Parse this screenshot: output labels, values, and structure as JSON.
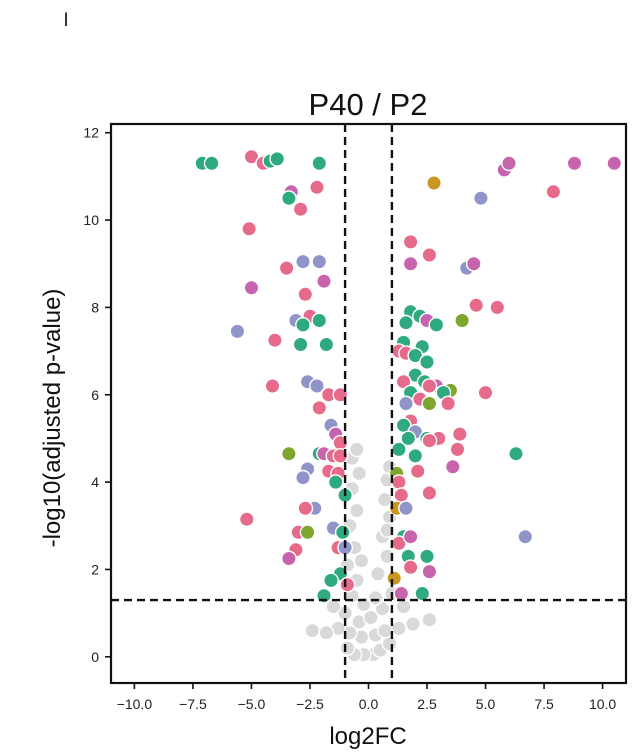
{
  "corner_label": "l",
  "chart_data": {
    "type": "scatter",
    "title": "P40 / P2",
    "xlabel": "log2FC",
    "ylabel": "-log10(adjusted p-value)",
    "xlim": [
      -11,
      11
    ],
    "ylim": [
      -0.6,
      12.2
    ],
    "xticks": [
      "−10.0",
      "−7.5",
      "−5.0",
      "−2.5",
      "0.0",
      "2.5",
      "5.0",
      "7.5",
      "10.0"
    ],
    "xtick_values": [
      -10,
      -7.5,
      -5,
      -2.5,
      0,
      2.5,
      5,
      7.5,
      10
    ],
    "yticks": [
      "0",
      "2",
      "4",
      "6",
      "8",
      "10",
      "12"
    ],
    "ytick_values": [
      0,
      2,
      4,
      6,
      8,
      10,
      12
    ],
    "thresholds": {
      "log2fc": [
        -1,
        1
      ],
      "neg_log10_p": 1.3
    },
    "grid": false,
    "colors": {
      "nonsig": "#d9d9d9",
      "pink": "#e66a8a",
      "green": "#2eaa7e",
      "purple": "#8f94c9",
      "magenta": "#c664ae",
      "olive": "#7ea52e",
      "gold": "#c9961f"
    },
    "points": [
      {
        "x": -7.1,
        "y": 11.3,
        "c": "green"
      },
      {
        "x": -6.7,
        "y": 11.3,
        "c": "green"
      },
      {
        "x": -5.0,
        "y": 11.45,
        "c": "pink"
      },
      {
        "x": -4.5,
        "y": 11.3,
        "c": "pink"
      },
      {
        "x": -4.2,
        "y": 11.35,
        "c": "green"
      },
      {
        "x": -3.9,
        "y": 11.4,
        "c": "green"
      },
      {
        "x": -2.1,
        "y": 11.3,
        "c": "green"
      },
      {
        "x": -3.3,
        "y": 10.65,
        "c": "magenta"
      },
      {
        "x": -3.4,
        "y": 10.5,
        "c": "green"
      },
      {
        "x": -2.2,
        "y": 10.75,
        "c": "pink"
      },
      {
        "x": -2.9,
        "y": 10.25,
        "c": "pink"
      },
      {
        "x": -5.1,
        "y": 9.8,
        "c": "pink"
      },
      {
        "x": -3.5,
        "y": 8.9,
        "c": "pink"
      },
      {
        "x": -2.8,
        "y": 9.05,
        "c": "purple"
      },
      {
        "x": -2.1,
        "y": 9.05,
        "c": "purple"
      },
      {
        "x": -1.9,
        "y": 8.6,
        "c": "magenta"
      },
      {
        "x": -2.7,
        "y": 8.3,
        "c": "pink"
      },
      {
        "x": -5.0,
        "y": 8.45,
        "c": "magenta"
      },
      {
        "x": -2.5,
        "y": 7.8,
        "c": "pink"
      },
      {
        "x": -2.1,
        "y": 7.7,
        "c": "green"
      },
      {
        "x": -3.1,
        "y": 7.7,
        "c": "purple"
      },
      {
        "x": -2.8,
        "y": 7.6,
        "c": "green"
      },
      {
        "x": -5.6,
        "y": 7.45,
        "c": "purple"
      },
      {
        "x": -4.0,
        "y": 7.25,
        "c": "pink"
      },
      {
        "x": -2.9,
        "y": 7.15,
        "c": "green"
      },
      {
        "x": -1.8,
        "y": 7.15,
        "c": "green"
      },
      {
        "x": -4.1,
        "y": 6.2,
        "c": "pink"
      },
      {
        "x": -2.6,
        "y": 6.3,
        "c": "purple"
      },
      {
        "x": -2.2,
        "y": 6.2,
        "c": "purple"
      },
      {
        "x": -1.7,
        "y": 6.0,
        "c": "pink"
      },
      {
        "x": -1.2,
        "y": 6.0,
        "c": "pink"
      },
      {
        "x": -2.1,
        "y": 5.7,
        "c": "pink"
      },
      {
        "x": -1.6,
        "y": 5.3,
        "c": "purple"
      },
      {
        "x": -1.4,
        "y": 5.1,
        "c": "magenta"
      },
      {
        "x": -1.2,
        "y": 4.9,
        "c": "pink"
      },
      {
        "x": -3.4,
        "y": 4.65,
        "c": "olive"
      },
      {
        "x": -2.1,
        "y": 4.65,
        "c": "green"
      },
      {
        "x": -1.9,
        "y": 4.65,
        "c": "magenta"
      },
      {
        "x": -1.5,
        "y": 4.6,
        "c": "pink"
      },
      {
        "x": -1.2,
        "y": 4.6,
        "c": "pink"
      },
      {
        "x": -2.6,
        "y": 4.3,
        "c": "purple"
      },
      {
        "x": -1.7,
        "y": 4.25,
        "c": "pink"
      },
      {
        "x": -1.3,
        "y": 4.2,
        "c": "pink"
      },
      {
        "x": -2.8,
        "y": 4.1,
        "c": "purple"
      },
      {
        "x": -1.4,
        "y": 4.0,
        "c": "green"
      },
      {
        "x": -1.0,
        "y": 3.7,
        "c": "green"
      },
      {
        "x": -2.3,
        "y": 3.4,
        "c": "purple"
      },
      {
        "x": -2.7,
        "y": 3.4,
        "c": "pink"
      },
      {
        "x": -5.2,
        "y": 3.15,
        "c": "pink"
      },
      {
        "x": -1.5,
        "y": 2.95,
        "c": "purple"
      },
      {
        "x": -1.1,
        "y": 2.85,
        "c": "green"
      },
      {
        "x": -3.0,
        "y": 2.85,
        "c": "pink"
      },
      {
        "x": -2.6,
        "y": 2.85,
        "c": "olive"
      },
      {
        "x": -1.3,
        "y": 2.5,
        "c": "pink"
      },
      {
        "x": -1.0,
        "y": 2.5,
        "c": "purple"
      },
      {
        "x": -3.1,
        "y": 2.45,
        "c": "pink"
      },
      {
        "x": -3.4,
        "y": 2.25,
        "c": "magenta"
      },
      {
        "x": -1.2,
        "y": 1.9,
        "c": "green"
      },
      {
        "x": -1.6,
        "y": 1.75,
        "c": "green"
      },
      {
        "x": -0.9,
        "y": 1.65,
        "c": "pink"
      },
      {
        "x": -1.9,
        "y": 1.4,
        "c": "green"
      },
      {
        "x": 2.8,
        "y": 10.85,
        "c": "gold"
      },
      {
        "x": 4.8,
        "y": 10.5,
        "c": "purple"
      },
      {
        "x": 5.8,
        "y": 11.15,
        "c": "magenta"
      },
      {
        "x": 6.0,
        "y": 11.3,
        "c": "magenta"
      },
      {
        "x": 7.9,
        "y": 10.65,
        "c": "pink"
      },
      {
        "x": 8.8,
        "y": 11.3,
        "c": "magenta"
      },
      {
        "x": 10.5,
        "y": 11.3,
        "c": "magenta"
      },
      {
        "x": 1.8,
        "y": 9.5,
        "c": "pink"
      },
      {
        "x": 2.6,
        "y": 9.2,
        "c": "pink"
      },
      {
        "x": 1.8,
        "y": 9.0,
        "c": "magenta"
      },
      {
        "x": 4.2,
        "y": 8.9,
        "c": "purple"
      },
      {
        "x": 4.5,
        "y": 9.0,
        "c": "magenta"
      },
      {
        "x": 1.8,
        "y": 7.9,
        "c": "green"
      },
      {
        "x": 2.2,
        "y": 7.8,
        "c": "green"
      },
      {
        "x": 2.5,
        "y": 7.7,
        "c": "magenta"
      },
      {
        "x": 1.6,
        "y": 7.65,
        "c": "green"
      },
      {
        "x": 2.9,
        "y": 7.6,
        "c": "green"
      },
      {
        "x": 4.6,
        "y": 8.05,
        "c": "pink"
      },
      {
        "x": 5.5,
        "y": 8.0,
        "c": "pink"
      },
      {
        "x": 4.0,
        "y": 7.7,
        "c": "olive"
      },
      {
        "x": 1.5,
        "y": 7.2,
        "c": "green"
      },
      {
        "x": 2.3,
        "y": 7.1,
        "c": "green"
      },
      {
        "x": 1.3,
        "y": 7.0,
        "c": "pink"
      },
      {
        "x": 1.6,
        "y": 6.95,
        "c": "pink"
      },
      {
        "x": 2.0,
        "y": 6.9,
        "c": "green"
      },
      {
        "x": 2.5,
        "y": 6.75,
        "c": "green"
      },
      {
        "x": 2.0,
        "y": 6.45,
        "c": "green"
      },
      {
        "x": 1.5,
        "y": 6.3,
        "c": "pink"
      },
      {
        "x": 2.4,
        "y": 6.3,
        "c": "green"
      },
      {
        "x": 2.9,
        "y": 6.2,
        "c": "magenta"
      },
      {
        "x": 2.6,
        "y": 6.2,
        "c": "pink"
      },
      {
        "x": 3.5,
        "y": 6.1,
        "c": "olive"
      },
      {
        "x": 1.8,
        "y": 6.05,
        "c": "green"
      },
      {
        "x": 3.2,
        "y": 6.05,
        "c": "green"
      },
      {
        "x": 5.0,
        "y": 6.05,
        "c": "pink"
      },
      {
        "x": 1.6,
        "y": 5.8,
        "c": "purple"
      },
      {
        "x": 2.2,
        "y": 5.9,
        "c": "pink"
      },
      {
        "x": 2.6,
        "y": 5.8,
        "c": "olive"
      },
      {
        "x": 3.4,
        "y": 5.8,
        "c": "pink"
      },
      {
        "x": 1.8,
        "y": 5.4,
        "c": "pink"
      },
      {
        "x": 1.5,
        "y": 5.3,
        "c": "green"
      },
      {
        "x": 2.0,
        "y": 5.15,
        "c": "purple"
      },
      {
        "x": 1.7,
        "y": 5.0,
        "c": "green"
      },
      {
        "x": 2.5,
        "y": 5.0,
        "c": "green"
      },
      {
        "x": 3.0,
        "y": 5.0,
        "c": "pink"
      },
      {
        "x": 2.6,
        "y": 4.95,
        "c": "pink"
      },
      {
        "x": 3.9,
        "y": 5.1,
        "c": "pink"
      },
      {
        "x": 1.3,
        "y": 4.75,
        "c": "green"
      },
      {
        "x": 2.0,
        "y": 4.6,
        "c": "green"
      },
      {
        "x": 3.8,
        "y": 4.75,
        "c": "pink"
      },
      {
        "x": 3.6,
        "y": 4.35,
        "c": "magenta"
      },
      {
        "x": 6.3,
        "y": 4.65,
        "c": "green"
      },
      {
        "x": 1.2,
        "y": 4.2,
        "c": "olive"
      },
      {
        "x": 2.1,
        "y": 4.25,
        "c": "pink"
      },
      {
        "x": 1.3,
        "y": 4.0,
        "c": "pink"
      },
      {
        "x": 1.4,
        "y": 3.7,
        "c": "pink"
      },
      {
        "x": 2.6,
        "y": 3.75,
        "c": "pink"
      },
      {
        "x": 1.2,
        "y": 3.4,
        "c": "gold"
      },
      {
        "x": 1.6,
        "y": 3.4,
        "c": "purple"
      },
      {
        "x": 1.5,
        "y": 2.75,
        "c": "green"
      },
      {
        "x": 1.3,
        "y": 2.6,
        "c": "pink"
      },
      {
        "x": 1.8,
        "y": 2.75,
        "c": "magenta"
      },
      {
        "x": 6.7,
        "y": 2.75,
        "c": "purple"
      },
      {
        "x": 1.7,
        "y": 2.3,
        "c": "green"
      },
      {
        "x": 2.5,
        "y": 2.3,
        "c": "green"
      },
      {
        "x": 1.8,
        "y": 2.05,
        "c": "pink"
      },
      {
        "x": 2.6,
        "y": 1.95,
        "c": "magenta"
      },
      {
        "x": 1.1,
        "y": 1.8,
        "c": "gold"
      },
      {
        "x": 1.4,
        "y": 1.45,
        "c": "magenta"
      },
      {
        "x": 2.3,
        "y": 1.45,
        "c": "green"
      },
      {
        "x": 0.2,
        "y": 0.05,
        "c": "nonsig"
      },
      {
        "x": -0.2,
        "y": 0.05,
        "c": "nonsig"
      },
      {
        "x": -0.6,
        "y": 0.05,
        "c": "nonsig"
      },
      {
        "x": 0.5,
        "y": 0.15,
        "c": "nonsig"
      },
      {
        "x": -0.9,
        "y": 0.2,
        "c": "nonsig"
      },
      {
        "x": 0.9,
        "y": 0.3,
        "c": "nonsig"
      },
      {
        "x": -0.3,
        "y": 0.45,
        "c": "nonsig"
      },
      {
        "x": 0.3,
        "y": 0.5,
        "c": "nonsig"
      },
      {
        "x": -0.8,
        "y": 0.55,
        "c": "nonsig"
      },
      {
        "x": 0.7,
        "y": 0.6,
        "c": "nonsig"
      },
      {
        "x": -1.3,
        "y": 0.65,
        "c": "nonsig"
      },
      {
        "x": 1.3,
        "y": 0.65,
        "c": "nonsig"
      },
      {
        "x": -2.4,
        "y": 0.6,
        "c": "nonsig"
      },
      {
        "x": -1.8,
        "y": 0.55,
        "c": "nonsig"
      },
      {
        "x": 1.9,
        "y": 0.75,
        "c": "nonsig"
      },
      {
        "x": 2.6,
        "y": 0.85,
        "c": "nonsig"
      },
      {
        "x": -0.4,
        "y": 0.8,
        "c": "nonsig"
      },
      {
        "x": 0.1,
        "y": 0.9,
        "c": "nonsig"
      },
      {
        "x": -1.0,
        "y": 1.0,
        "c": "nonsig"
      },
      {
        "x": 0.6,
        "y": 1.1,
        "c": "nonsig"
      },
      {
        "x": -0.2,
        "y": 1.2,
        "c": "nonsig"
      },
      {
        "x": 1.5,
        "y": 1.15,
        "c": "nonsig"
      },
      {
        "x": -1.5,
        "y": 1.15,
        "c": "nonsig"
      },
      {
        "x": 0.3,
        "y": 1.35,
        "c": "nonsig"
      },
      {
        "x": -0.7,
        "y": 1.4,
        "c": "nonsig"
      },
      {
        "x": 1.0,
        "y": 1.45,
        "c": "nonsig"
      },
      {
        "x": -0.5,
        "y": 1.75,
        "c": "nonsig"
      },
      {
        "x": 0.4,
        "y": 1.9,
        "c": "nonsig"
      },
      {
        "x": -0.9,
        "y": 2.1,
        "c": "nonsig"
      },
      {
        "x": 0.8,
        "y": 2.3,
        "c": "nonsig"
      },
      {
        "x": -0.6,
        "y": 2.5,
        "c": "nonsig"
      },
      {
        "x": 0.6,
        "y": 2.75,
        "c": "nonsig"
      },
      {
        "x": -0.8,
        "y": 3.0,
        "c": "nonsig"
      },
      {
        "x": 0.9,
        "y": 3.2,
        "c": "nonsig"
      },
      {
        "x": -0.5,
        "y": 3.35,
        "c": "nonsig"
      },
      {
        "x": 0.7,
        "y": 3.6,
        "c": "nonsig"
      },
      {
        "x": -0.7,
        "y": 3.85,
        "c": "nonsig"
      },
      {
        "x": 0.8,
        "y": 4.05,
        "c": "nonsig"
      },
      {
        "x": -0.4,
        "y": 4.2,
        "c": "nonsig"
      },
      {
        "x": 0.9,
        "y": 4.35,
        "c": "nonsig"
      },
      {
        "x": -0.7,
        "y": 4.55,
        "c": "nonsig"
      },
      {
        "x": -0.5,
        "y": 4.75,
        "c": "nonsig"
      },
      {
        "x": 0.8,
        "y": 2.9,
        "c": "nonsig"
      },
      {
        "x": -0.3,
        "y": 2.2,
        "c": "nonsig"
      }
    ]
  }
}
